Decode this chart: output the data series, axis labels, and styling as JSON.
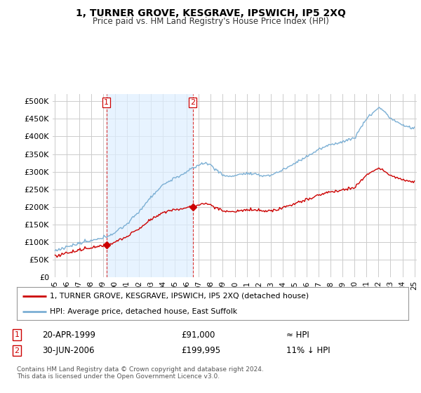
{
  "title": "1, TURNER GROVE, KESGRAVE, IPSWICH, IP5 2XQ",
  "subtitle": "Price paid vs. HM Land Registry's House Price Index (HPI)",
  "bg_color": "#ffffff",
  "plot_bg_color": "#ffffff",
  "grid_color": "#cccccc",
  "hpi_color": "#7bafd4",
  "hpi_fill_color": "#ddeeff",
  "price_color": "#cc0000",
  "marker_color": "#cc0000",
  "dashed_color": "#cc0000",
  "ylim_min": 0,
  "ylim_max": 520000,
  "yticks": [
    0,
    50000,
    100000,
    150000,
    200000,
    250000,
    300000,
    350000,
    400000,
    450000,
    500000
  ],
  "ytick_labels": [
    "£0",
    "£50K",
    "£100K",
    "£150K",
    "£200K",
    "£250K",
    "£300K",
    "£350K",
    "£400K",
    "£450K",
    "£500K"
  ],
  "sale1_date": 1999.3,
  "sale1_price": 91000,
  "sale1_label": "1",
  "sale2_date": 2006.49,
  "sale2_price": 199995,
  "sale2_label": "2",
  "legend_line1": "1, TURNER GROVE, KESGRAVE, IPSWICH, IP5 2XQ (detached house)",
  "legend_line2": "HPI: Average price, detached house, East Suffolk",
  "footer": "Contains HM Land Registry data © Crown copyright and database right 2024.\nThis data is licensed under the Open Government Licence v3.0.",
  "xtick_years": [
    1995,
    1996,
    1997,
    1998,
    1999,
    2000,
    2001,
    2002,
    2003,
    2004,
    2005,
    2006,
    2007,
    2008,
    2009,
    2010,
    2011,
    2012,
    2013,
    2014,
    2015,
    2016,
    2017,
    2018,
    2019,
    2020,
    2021,
    2022,
    2023,
    2024,
    2025
  ]
}
